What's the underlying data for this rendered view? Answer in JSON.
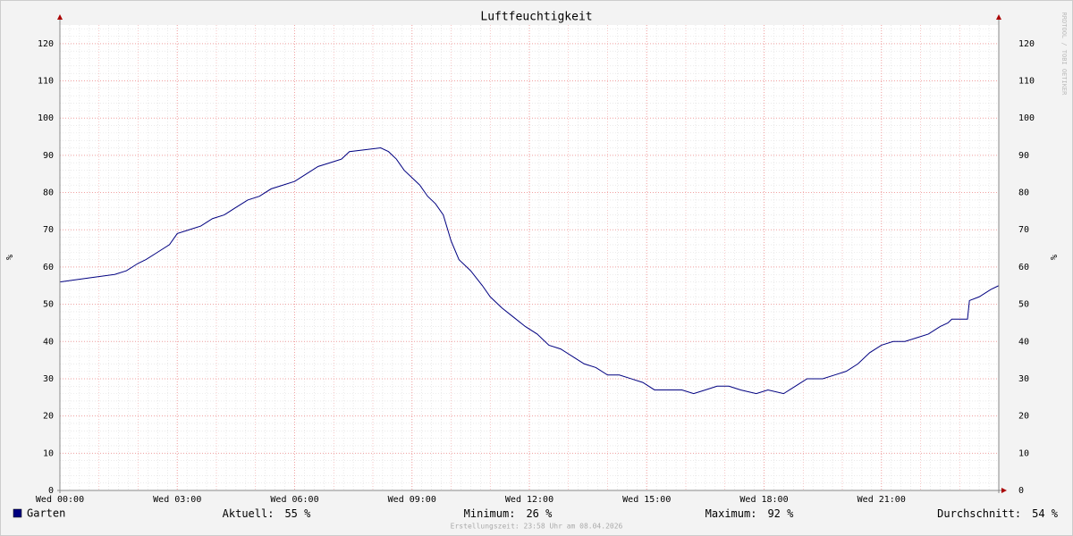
{
  "chart_data": {
    "type": "line",
    "title": "Luftfeuchtigkeit",
    "y_label": "%",
    "watermark": "RRDTOOL / TOBI OETIKER",
    "x": [
      0,
      0.7,
      1.4,
      1.7,
      2.0,
      2.2,
      2.5,
      2.8,
      3.0,
      3.3,
      3.6,
      3.9,
      4.2,
      4.5,
      4.8,
      5.1,
      5.4,
      5.7,
      6.0,
      6.3,
      6.6,
      6.9,
      7.2,
      7.4,
      8.2,
      8.4,
      8.6,
      8.8,
      9.0,
      9.2,
      9.4,
      9.6,
      9.8,
      10.0,
      10.2,
      10.5,
      10.8,
      11.0,
      11.3,
      11.6,
      11.9,
      12.2,
      12.5,
      12.8,
      13.1,
      13.4,
      13.7,
      14.0,
      14.3,
      14.6,
      14.9,
      15.2,
      15.5,
      15.9,
      16.2,
      16.5,
      16.8,
      17.1,
      17.4,
      17.8,
      18.1,
      18.5,
      18.8,
      19.1,
      19.5,
      19.8,
      20.1,
      20.4,
      20.7,
      21.0,
      21.3,
      21.6,
      21.9,
      22.2,
      22.5,
      22.7,
      22.8,
      23.1,
      23.2,
      23.25,
      23.5,
      23.8,
      24
    ],
    "series": [
      {
        "name": "Garten",
        "color": "#000080",
        "values": [
          56,
          57,
          58,
          59,
          61,
          62,
          64,
          66,
          69,
          70,
          71,
          73,
          74,
          76,
          78,
          79,
          81,
          82,
          83,
          85,
          87,
          88,
          89,
          91,
          92,
          91,
          89,
          86,
          84,
          82,
          79,
          77,
          74,
          67,
          62,
          59,
          55,
          52,
          49,
          46.5,
          44,
          42,
          39,
          38,
          36,
          34,
          33,
          31,
          31,
          30,
          29,
          27,
          27,
          27,
          26,
          27,
          28,
          28,
          27,
          26,
          27,
          26,
          28,
          30,
          30,
          31,
          32,
          34,
          37,
          39,
          40,
          40,
          41,
          42,
          44,
          45,
          46,
          46,
          46,
          51,
          52,
          54,
          55
        ]
      }
    ],
    "xlim": [
      0,
      24
    ],
    "xticks": [
      {
        "value": 0,
        "label": "Wed 00:00"
      },
      {
        "value": 3,
        "label": "Wed 03:00"
      },
      {
        "value": 6,
        "label": "Wed 06:00"
      },
      {
        "value": 9,
        "label": "Wed 09:00"
      },
      {
        "value": 12,
        "label": "Wed 12:00"
      },
      {
        "value": 15,
        "label": "Wed 15:00"
      },
      {
        "value": 18,
        "label": "Wed 18:00"
      },
      {
        "value": 21,
        "label": "Wed 21:00"
      }
    ],
    "ylim": [
      0,
      125
    ],
    "yticks": [
      0,
      10,
      20,
      30,
      40,
      50,
      60,
      70,
      80,
      90,
      100,
      110,
      120
    ],
    "grid": true,
    "stats": [
      {
        "label": "Aktuell:",
        "value": "55 %"
      },
      {
        "label": "Minimum:",
        "value": "26 %"
      },
      {
        "label": "Maximum:",
        "value": "92 %"
      },
      {
        "label": "Durchschnitt:",
        "value": "54 %"
      }
    ],
    "footer": "Erstellungszeit: 23:58 Uhr am 08.04.2026"
  }
}
